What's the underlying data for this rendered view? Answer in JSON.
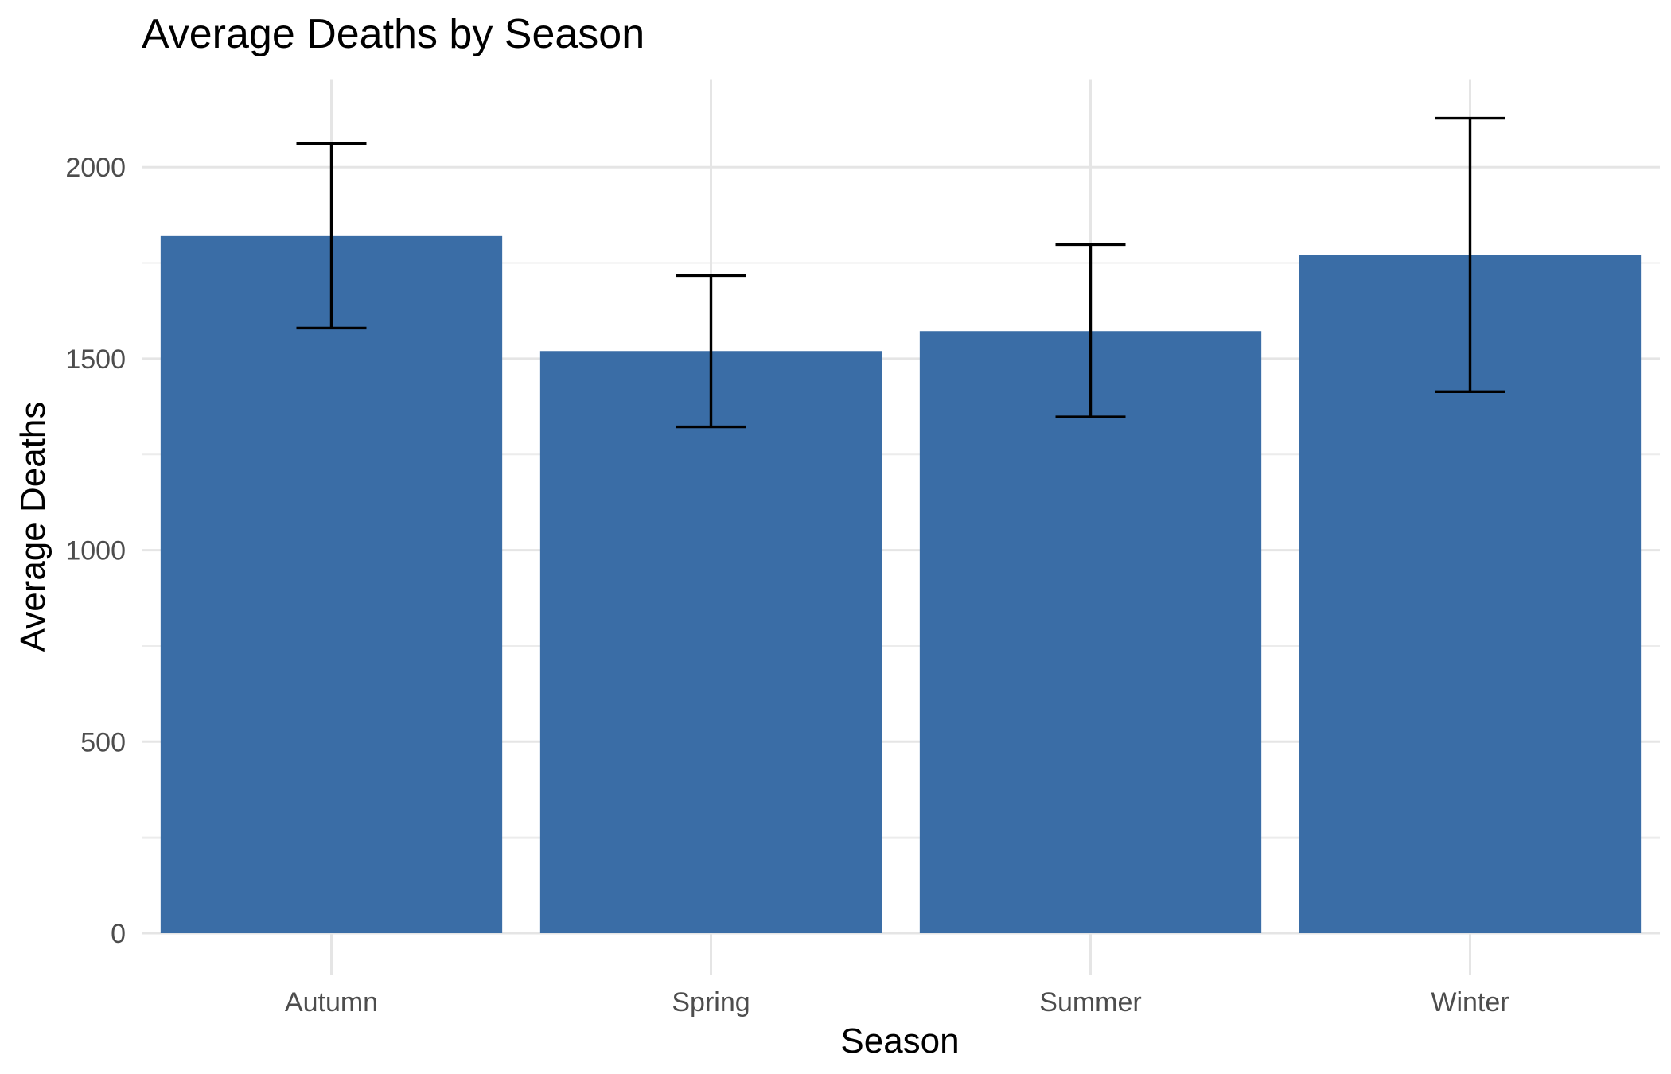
{
  "chart_data": {
    "type": "bar",
    "title": "Average Deaths by Season",
    "xlabel": "Season",
    "ylabel": "Average Deaths",
    "categories": [
      "Autumn",
      "Spring",
      "Summer",
      "Winter"
    ],
    "values": [
      1820,
      1520,
      1572,
      1770
    ],
    "error_bars": {
      "lower": [
        1580,
        1322,
        1348,
        1414
      ],
      "upper": [
        2062,
        1717,
        1798,
        2128
      ]
    },
    "ylim": [
      0,
      2230
    ],
    "yticks": [
      0,
      500,
      1000,
      1500,
      2000
    ],
    "ytick_labels": [
      "0",
      "500",
      "1000",
      "1500",
      "2000"
    ],
    "grid": true,
    "legend": "none",
    "colors": {
      "bar": "#3A6DA6",
      "error_bar": "#000000",
      "grid": "#E5E5E5",
      "background": "#FFFFFF"
    }
  }
}
